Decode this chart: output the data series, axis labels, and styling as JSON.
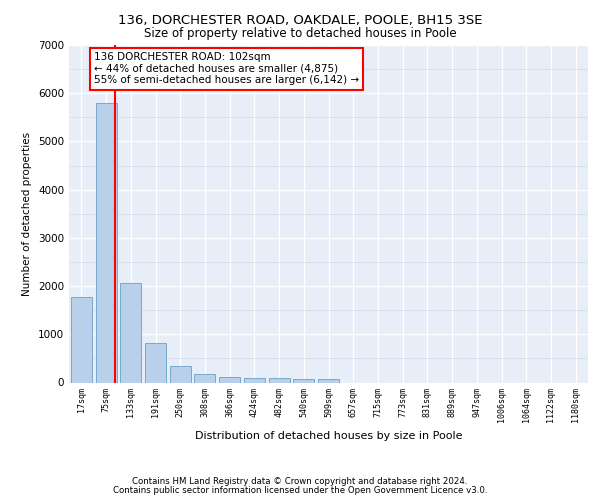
{
  "title1": "136, DORCHESTER ROAD, OAKDALE, POOLE, BH15 3SE",
  "title2": "Size of property relative to detached houses in Poole",
  "xlabel": "Distribution of detached houses by size in Poole",
  "ylabel": "Number of detached properties",
  "bin_labels": [
    "17sqm",
    "75sqm",
    "133sqm",
    "191sqm",
    "250sqm",
    "308sqm",
    "366sqm",
    "424sqm",
    "482sqm",
    "540sqm",
    "599sqm",
    "657sqm",
    "715sqm",
    "773sqm",
    "831sqm",
    "889sqm",
    "947sqm",
    "1006sqm",
    "1064sqm",
    "1122sqm",
    "1180sqm"
  ],
  "bar_values": [
    1780,
    5800,
    2060,
    820,
    340,
    185,
    115,
    95,
    90,
    75,
    75,
    0,
    0,
    0,
    0,
    0,
    0,
    0,
    0,
    0,
    0
  ],
  "bar_color": "#b8d0ea",
  "bar_edge_color": "#6a9fc8",
  "property_line_color": "red",
  "annotation_text": "136 DORCHESTER ROAD: 102sqm\n← 44% of detached houses are smaller (4,875)\n55% of semi-detached houses are larger (6,142) →",
  "ylim": [
    0,
    7000
  ],
  "yticks": [
    0,
    1000,
    2000,
    3000,
    4000,
    5000,
    6000,
    7000
  ],
  "footer1": "Contains HM Land Registry data © Crown copyright and database right 2024.",
  "footer2": "Contains public sector information licensed under the Open Government Licence v3.0.",
  "bg_color": "#e8eef8",
  "grid_major_color": "#ffffff",
  "grid_minor_color": "#ccd6e8"
}
